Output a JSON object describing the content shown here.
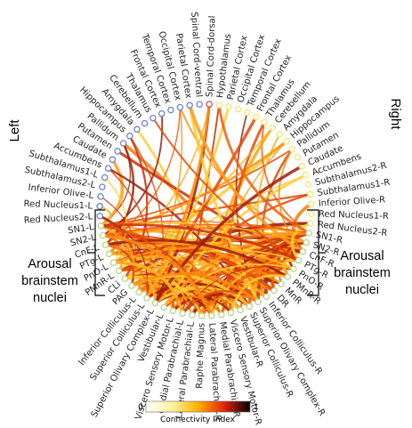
{
  "side_labels": {
    "left": "Left",
    "right": "Right"
  },
  "group_label": {
    "line1": "Arousal",
    "line2": "brainstem",
    "line3": "nuclei"
  },
  "colorbar": {
    "min": "0",
    "max": "1",
    "title": "Connectivity Index"
  },
  "node_colors": {
    "ring_blue": "#6f86c4",
    "ring_yellow": "#f3e778",
    "ring_green": "#b8d58e",
    "ring_red": "#d8454a"
  },
  "nodes": [
    {
      "label": "Spinal Cord-dorsal",
      "color": "ring_red"
    },
    {
      "label": "Hypothalamus",
      "color": "ring_yellow"
    },
    {
      "label": "Parietal Cortex",
      "color": "ring_yellow"
    },
    {
      "label": "Occipital Cortex",
      "color": "ring_yellow"
    },
    {
      "label": "Temporal Cortex",
      "color": "ring_yellow"
    },
    {
      "label": "Frontal Cortex",
      "color": "ring_yellow"
    },
    {
      "label": "Thalamus",
      "color": "ring_yellow"
    },
    {
      "label": "Cerebellum",
      "color": "ring_yellow"
    },
    {
      "label": "Amygdala",
      "color": "ring_yellow"
    },
    {
      "label": "Hippocampus",
      "color": "ring_yellow"
    },
    {
      "label": "Pallidum",
      "color": "ring_yellow"
    },
    {
      "label": "Putamen",
      "color": "ring_yellow"
    },
    {
      "label": "Caudate",
      "color": "ring_yellow"
    },
    {
      "label": "Accumbens",
      "color": "ring_yellow"
    },
    {
      "label": "Subthalamus2-R",
      "color": "ring_yellow"
    },
    {
      "label": "Subthalamus1-R",
      "color": "ring_yellow"
    },
    {
      "label": "Inferior Olive-R",
      "color": "ring_yellow"
    },
    {
      "label": "Red Nucleus1-R",
      "color": "ring_yellow"
    },
    {
      "label": "Red Nucleus2-R",
      "color": "ring_yellow"
    },
    {
      "label": "SN1-R",
      "color": "ring_green"
    },
    {
      "label": "SN2-R",
      "color": "ring_green"
    },
    {
      "label": "CnF-R",
      "color": "ring_green"
    },
    {
      "label": "PTg-R",
      "color": "ring_green"
    },
    {
      "label": "PnO-R",
      "color": "ring_green"
    },
    {
      "label": "PMnR-R",
      "color": "ring_green"
    },
    {
      "label": "MnR",
      "color": "ring_green"
    },
    {
      "label": "DR",
      "color": "ring_green"
    },
    {
      "label": "Inferior Colliculus-R",
      "color": "ring_green"
    },
    {
      "label": "Superior Olivary Complex-R",
      "color": "ring_green"
    },
    {
      "label": "Superior Colliculus-R",
      "color": "ring_green"
    },
    {
      "label": "Vestibular-R",
      "color": "ring_green"
    },
    {
      "label": "Viscero Sensory Motor-R",
      "color": "ring_green"
    },
    {
      "label": "Medial Parabrachial-R",
      "color": "ring_green"
    },
    {
      "label": "Lateral Parabrachial-R",
      "color": "ring_green"
    },
    {
      "label": "Raphe Magnus",
      "color": "ring_green"
    },
    {
      "label": "Lateral Parabrachial-L",
      "color": "ring_green"
    },
    {
      "label": "Medial Parabrachial-L",
      "color": "ring_green"
    },
    {
      "label": "Viscero Sensory Motor-L",
      "color": "ring_green"
    },
    {
      "label": "Vestibular-L",
      "color": "ring_green"
    },
    {
      "label": "Superior Olivary Complex-L",
      "color": "ring_green"
    },
    {
      "label": "Superior Colliculus-L",
      "color": "ring_green"
    },
    {
      "label": "Inferior Colliculus-L",
      "color": "ring_green"
    },
    {
      "label": "PAG",
      "color": "ring_green"
    },
    {
      "label": "CLi",
      "color": "ring_green"
    },
    {
      "label": "PMnR-L",
      "color": "ring_green"
    },
    {
      "label": "PnO-L",
      "color": "ring_green"
    },
    {
      "label": "PTg-L",
      "color": "ring_green"
    },
    {
      "label": "CnF-L",
      "color": "ring_green"
    },
    {
      "label": "SN2-L",
      "color": "ring_green"
    },
    {
      "label": "SN1-L",
      "color": "ring_green"
    },
    {
      "label": "Red Nucleus2-L",
      "color": "ring_blue"
    },
    {
      "label": "Red Nucleus1-L",
      "color": "ring_blue"
    },
    {
      "label": "Inferior Olive-L",
      "color": "ring_blue"
    },
    {
      "label": "Subthalamus2-L",
      "color": "ring_blue"
    },
    {
      "label": "Subthalamus1-L",
      "color": "ring_blue"
    },
    {
      "label": "Accumbens",
      "color": "ring_blue"
    },
    {
      "label": "Caudate",
      "color": "ring_blue"
    },
    {
      "label": "Putamen",
      "color": "ring_blue"
    },
    {
      "label": "Pallidum",
      "color": "ring_blue"
    },
    {
      "label": "Hippocampus",
      "color": "ring_blue"
    },
    {
      "label": "Amygdala",
      "color": "ring_blue"
    },
    {
      "label": "Cerebellum",
      "color": "ring_blue"
    },
    {
      "label": "Thalamus",
      "color": "ring_blue"
    },
    {
      "label": "Frontal Cortex",
      "color": "ring_blue"
    },
    {
      "label": "Temporal Cortex",
      "color": "ring_blue"
    },
    {
      "label": "Occipital Cortex",
      "color": "ring_blue"
    },
    {
      "label": "Parietal Cortex",
      "color": "ring_blue"
    },
    {
      "label": "Spinal Cord-ventral",
      "color": "ring_blue"
    }
  ]
}
